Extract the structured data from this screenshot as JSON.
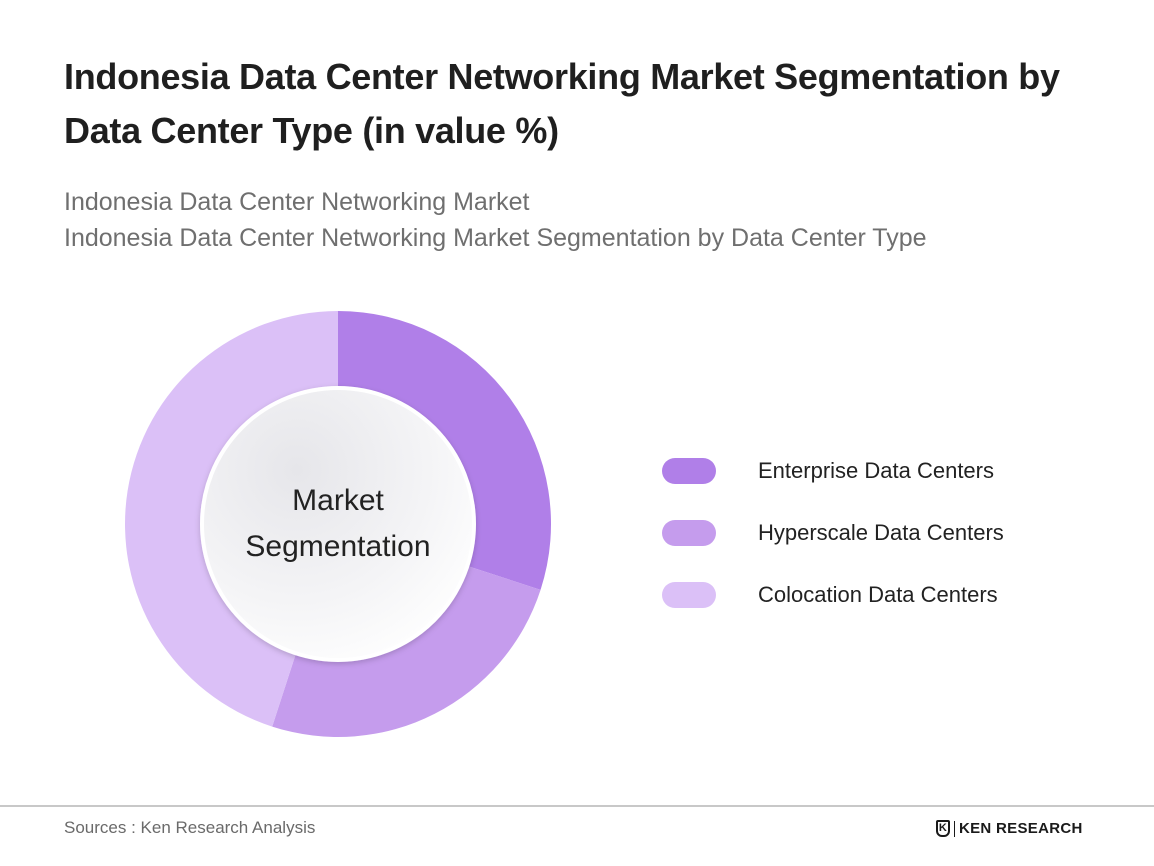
{
  "header": {
    "title": "Indonesia Data Center Networking Market Segmentation by Data Center Type (in value %)",
    "subtitle_lines": [
      "Indonesia Data Center Networking Market",
      "Indonesia Data Center Networking Market Segmentation by Data Center Type"
    ]
  },
  "center_label": {
    "line1": "Market",
    "line2": "Segmentation"
  },
  "legend": [
    {
      "label": "Enterprise Data Centers",
      "color": "#b07fe8"
    },
    {
      "label": "Hyperscale Data Centers",
      "color": "#c59ced"
    },
    {
      "label": "Colocation Data Centers",
      "color": "#dbc0f7"
    }
  ],
  "footer": {
    "source": "Sources : Ken Research Analysis",
    "logo_mark": "K",
    "logo_text": "KEN RESEARCH"
  },
  "chart_data": {
    "type": "pie",
    "variant": "donut",
    "title": "Indonesia Data Center Networking Market Segmentation by Data Center Type (in value %)",
    "subtitle": "Indonesia Data Center Networking Market / Indonesia Data Center Networking Market Segmentation by Data Center Type",
    "center_text": "Market Segmentation",
    "categories": [
      "Enterprise Data Centers",
      "Hyperscale Data Centers",
      "Colocation Data Centers"
    ],
    "values": [
      30,
      25,
      45
    ],
    "unit": "%",
    "colors": [
      "#b07fe8",
      "#c59ced",
      "#dbc0f7"
    ],
    "start_angle_deg": 0,
    "direction": "clockwise",
    "data_labels_shown": false,
    "legend_position": "right"
  }
}
